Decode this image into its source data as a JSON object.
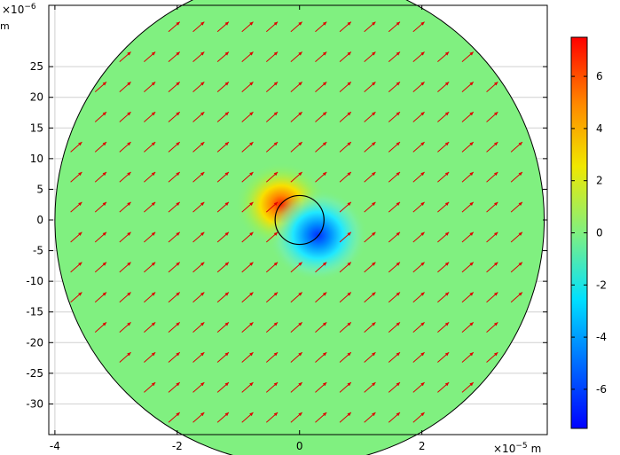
{
  "chart_data": {
    "type": "heatmap",
    "title": "",
    "x_axis": {
      "unit": "m",
      "exponent_label": "×10",
      "exponent": "−5",
      "range": [
        -4.1,
        4.05
      ],
      "ticks": [
        -4,
        -2,
        0,
        2
      ],
      "tick_labels": [
        "-4",
        "-2",
        "0",
        "2"
      ]
    },
    "y_axis": {
      "unit": "m",
      "exponent_label": "×10",
      "exponent": "−6",
      "range": [
        -35,
        35
      ],
      "ticks": [
        25,
        20,
        15,
        10,
        5,
        0,
        -5,
        -10,
        -15,
        -20,
        -25,
        -30
      ],
      "tick_labels": [
        "25",
        "20",
        "15",
        "10",
        "5",
        "0",
        "-5",
        "-10",
        "-15",
        "-20",
        "-25",
        "-30"
      ]
    },
    "domain": {
      "shape": "circle",
      "center": [
        0,
        0
      ],
      "radius_x_units": 4
    },
    "inclusion": {
      "shape": "circle",
      "center": [
        0,
        0
      ],
      "radius_x_units": 0.4
    },
    "dipole": {
      "positive_lobe": [
        -0.3,
        2.5
      ],
      "negative_lobe": [
        0.3,
        -2.5
      ],
      "peak": 7.5
    },
    "arrow_field": {
      "direction": "upper-right",
      "color": "#dd0000"
    },
    "colorbar": {
      "range": [
        -7.5,
        7.5
      ],
      "ticks": [
        6,
        4,
        2,
        0,
        -2,
        -4,
        -6
      ],
      "tick_labels": [
        "6",
        "4",
        "2",
        "0",
        "-2",
        "-4",
        "-6"
      ],
      "colormap": "rainbow"
    },
    "colors": {
      "background_field": "#80f080",
      "grid": "#d0d0d0",
      "arrow": "#dd0000",
      "outline": "#000000"
    }
  }
}
